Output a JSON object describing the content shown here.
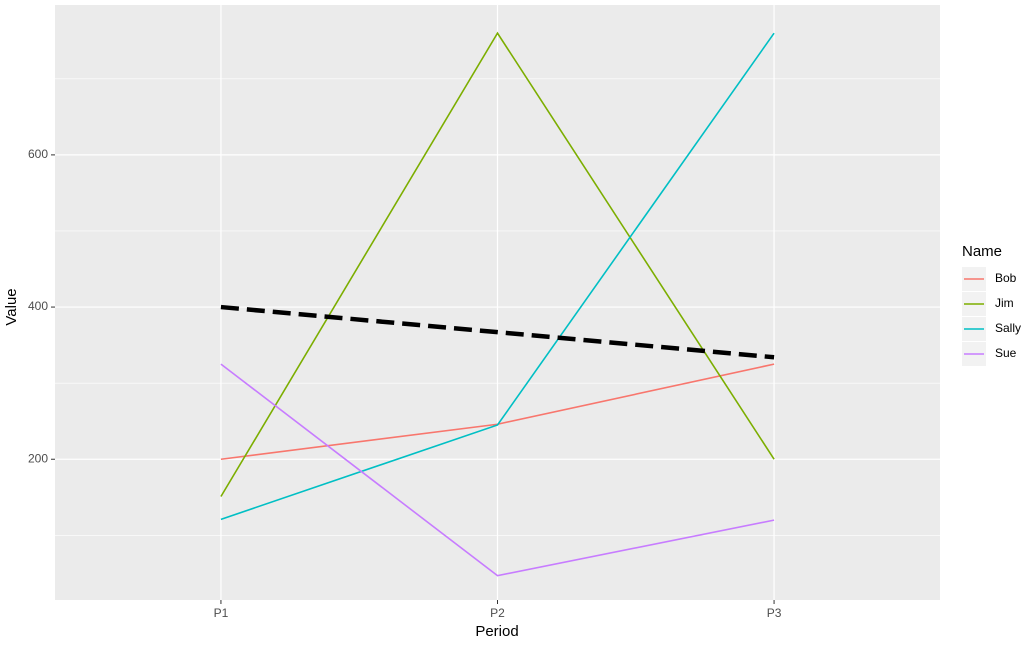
{
  "chart_data": {
    "type": "line",
    "x_label": "Period",
    "y_label": "Value",
    "categories": [
      "P1",
      "P2",
      "P3"
    ],
    "series": [
      {
        "name": "Bob",
        "color": "#F8766D",
        "values": [
          200,
          246,
          325
        ]
      },
      {
        "name": "Jim",
        "color": "#7CAE00",
        "values": [
          151,
          760,
          200
        ]
      },
      {
        "name": "Sally",
        "color": "#00BFC4",
        "values": [
          121,
          245,
          760
        ]
      },
      {
        "name": "Sue",
        "color": "#C77CFF",
        "values": [
          325,
          47,
          120
        ]
      }
    ],
    "reference_line": {
      "color": "#000000",
      "dashed": true,
      "values": [
        400,
        367,
        334
      ]
    },
    "legend_title": "Name",
    "legend_position": "right",
    "ylim": [
      15,
      797
    ],
    "yticks": [
      200,
      400,
      600
    ],
    "minor_yticks": [
      100,
      300,
      500,
      700
    ],
    "grid": true
  }
}
